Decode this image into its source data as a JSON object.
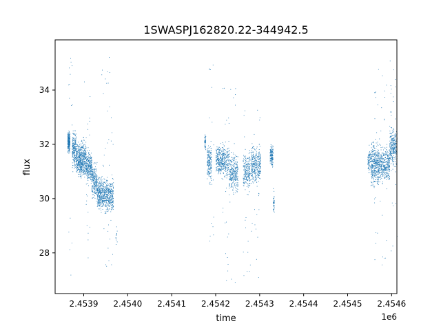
{
  "chart_data": {
    "type": "scatter",
    "title": "1SWASPJ162820.22-344942.5",
    "xlabel": "time",
    "ylabel": "flux",
    "x_offset_label": "1e6",
    "xlim": [
      2453835,
      2454612
    ],
    "ylim": [
      26.5,
      35.85
    ],
    "grid": false,
    "marker_color": "#1f77b4",
    "x_ticks": [
      2453900,
      2454000,
      2454100,
      2454200,
      2454300,
      2454400,
      2454500,
      2454600
    ],
    "x_tick_labels": [
      "2.4539",
      "2.4540",
      "2.4541",
      "2.4542",
      "2.4543",
      "2.4544",
      "2.4545",
      "2.4546"
    ],
    "y_ticks": [
      28,
      30,
      32,
      34
    ],
    "y_tick_labels": [
      "28",
      "30",
      "32",
      "34"
    ],
    "series": [
      {
        "clusters": [
          {
            "x": [
              2453863,
              2453868
            ],
            "y": [
              31.6,
              32.6
            ],
            "n": 260
          },
          {
            "x": [
              2453873,
              2453882
            ],
            "y": [
              31.0,
              32.7
            ],
            "n": 200
          },
          {
            "x": [
              2453882,
              2453892
            ],
            "y": [
              30.6,
              32.2
            ],
            "n": 240
          },
          {
            "x": [
              2453892,
              2453905
            ],
            "y": [
              30.5,
              32.4
            ],
            "n": 320
          },
          {
            "x": [
              2453905,
              2453918
            ],
            "y": [
              30.4,
              32.0
            ],
            "n": 260
          },
          {
            "x": [
              2453918,
              2453930
            ],
            "y": [
              29.8,
              31.5
            ],
            "n": 220
          },
          {
            "x": [
              2453930,
              2453945
            ],
            "y": [
              29.4,
              31.0
            ],
            "n": 300
          },
          {
            "x": [
              2453945,
              2453967
            ],
            "y": [
              29.3,
              30.9
            ],
            "n": 360
          },
          {
            "x": [
              2453972,
              2453976
            ],
            "y": [
              28.0,
              29.2
            ],
            "n": 12
          },
          {
            "x": [
              2454174,
              2454177
            ],
            "y": [
              31.6,
              32.6
            ],
            "n": 50
          },
          {
            "x": [
              2454180,
              2454190
            ],
            "y": [
              30.4,
              32.3
            ],
            "n": 180
          },
          {
            "x": [
              2454200,
              2454230
            ],
            "y": [
              30.6,
              32.2
            ],
            "n": 420
          },
          {
            "x": [
              2454230,
              2454250
            ],
            "y": [
              30.0,
              31.9
            ],
            "n": 280
          },
          {
            "x": [
              2454262,
              2454278
            ],
            "y": [
              30.1,
              31.9
            ],
            "n": 220
          },
          {
            "x": [
              2454280,
              2454302
            ],
            "y": [
              30.3,
              32.2
            ],
            "n": 320
          },
          {
            "x": [
              2454323,
              2454330
            ],
            "y": [
              31.0,
              32.2
            ],
            "n": 140
          },
          {
            "x": [
              2454330,
              2454333
            ],
            "y": [
              29.3,
              30.4
            ],
            "n": 40
          },
          {
            "x": [
              2454545,
              2454552
            ],
            "y": [
              30.8,
              32.0
            ],
            "n": 80
          },
          {
            "x": [
              2454552,
              2454570
            ],
            "y": [
              30.2,
              32.4
            ],
            "n": 360
          },
          {
            "x": [
              2454570,
              2454595
            ],
            "y": [
              30.4,
              32.1
            ],
            "n": 380
          },
          {
            "x": [
              2454595,
              2454612
            ],
            "y": [
              31.0,
              32.8
            ],
            "n": 280
          }
        ],
        "outlier_columns": [
          {
            "x": [
              2453865,
              2453875
            ],
            "y": [
              27.0,
              35.3
            ],
            "n": 20
          },
          {
            "x": [
              2453900,
              2453915
            ],
            "y": [
              27.5,
              34.4
            ],
            "n": 25
          },
          {
            "x": [
              2453940,
              2453967
            ],
            "y": [
              26.9,
              35.4
            ],
            "n": 40
          },
          {
            "x": [
              2454185,
              2454195
            ],
            "y": [
              27.9,
              35.4
            ],
            "n": 20
          },
          {
            "x": [
              2454215,
              2454245
            ],
            "y": [
              26.9,
              34.8
            ],
            "n": 40
          },
          {
            "x": [
              2454260,
              2454300
            ],
            "y": [
              27.0,
              34.0
            ],
            "n": 40
          },
          {
            "x": [
              2454560,
              2454590
            ],
            "y": [
              26.9,
              35.1
            ],
            "n": 40
          },
          {
            "x": [
              2454595,
              2454612
            ],
            "y": [
              27.3,
              35.5
            ],
            "n": 30
          }
        ]
      }
    ]
  }
}
